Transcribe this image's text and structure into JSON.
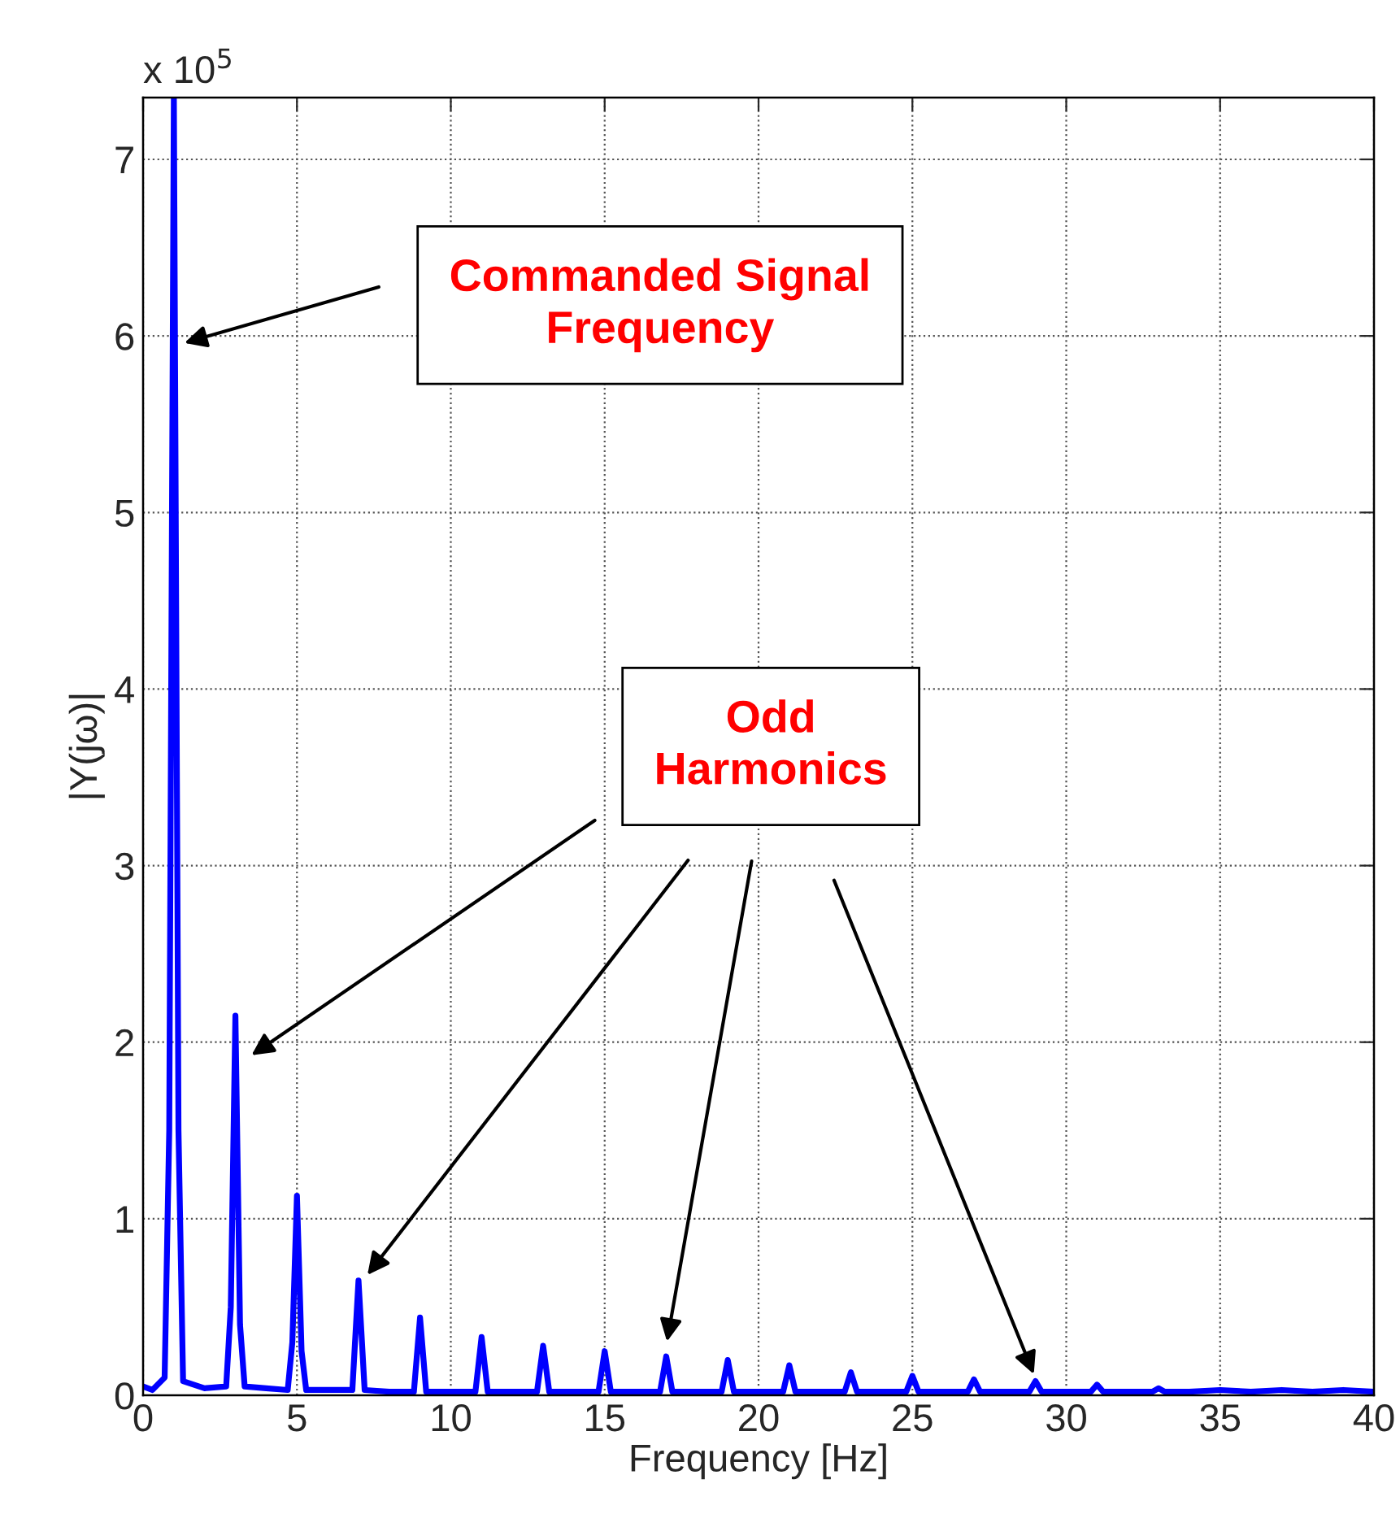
{
  "chart_data": {
    "type": "line",
    "xlabel": "Frequency [Hz]",
    "ylabel": "|Y(jω)|",
    "x": [
      0,
      0.3,
      0.7,
      0.85,
      1,
      1.15,
      1.3,
      2,
      2.7,
      2.85,
      3,
      3.15,
      3.3,
      4,
      4.7,
      4.85,
      5,
      5.15,
      5.3,
      6,
      6.8,
      7,
      7.2,
      8,
      8.8,
      9,
      9.2,
      10,
      10.8,
      11,
      11.2,
      12,
      12.8,
      13,
      13.2,
      14,
      14.8,
      15,
      15.2,
      16,
      16.8,
      17,
      17.2,
      18,
      18.8,
      19,
      19.2,
      20,
      20.8,
      21,
      21.2,
      22,
      22.8,
      23,
      23.2,
      24,
      24.8,
      25,
      25.2,
      26,
      26.8,
      27,
      27.2,
      28,
      28.8,
      29,
      29.2,
      30,
      30.8,
      31,
      31.2,
      32,
      32.8,
      33,
      33.2,
      34,
      35,
      36,
      37,
      38,
      39,
      40
    ],
    "series": [
      {
        "color": "#0000ff",
        "values": [
          0.05,
          0.03,
          0.1,
          1.5,
          7.35,
          1.5,
          0.08,
          0.04,
          0.05,
          0.5,
          2.15,
          0.4,
          0.05,
          0.04,
          0.03,
          0.3,
          1.13,
          0.25,
          0.03,
          0.03,
          0.03,
          0.65,
          0.03,
          0.02,
          0.02,
          0.44,
          0.02,
          0.02,
          0.02,
          0.33,
          0.02,
          0.02,
          0.02,
          0.28,
          0.02,
          0.02,
          0.02,
          0.25,
          0.02,
          0.02,
          0.02,
          0.22,
          0.02,
          0.02,
          0.02,
          0.2,
          0.02,
          0.02,
          0.02,
          0.17,
          0.02,
          0.02,
          0.02,
          0.13,
          0.02,
          0.02,
          0.02,
          0.11,
          0.02,
          0.02,
          0.02,
          0.09,
          0.02,
          0.02,
          0.02,
          0.08,
          0.02,
          0.02,
          0.02,
          0.06,
          0.02,
          0.02,
          0.02,
          0.04,
          0.02,
          0.02,
          0.03,
          0.02,
          0.03,
          0.02,
          0.03,
          0.02
        ]
      }
    ],
    "xlim": [
      0,
      40
    ],
    "xticks": [
      0,
      5,
      10,
      15,
      20,
      25,
      30,
      35,
      40
    ],
    "ylim": [
      0,
      7.35
    ],
    "yticks": [
      0,
      1,
      2,
      3,
      4,
      5,
      6,
      7
    ],
    "grid": true,
    "line_style": "solid",
    "marker": "none",
    "annotations": [
      "x 10$^{5}$",
      "Commanded Signal\nFrequency",
      "Odd\nHarmonics"
    ]
  }
}
